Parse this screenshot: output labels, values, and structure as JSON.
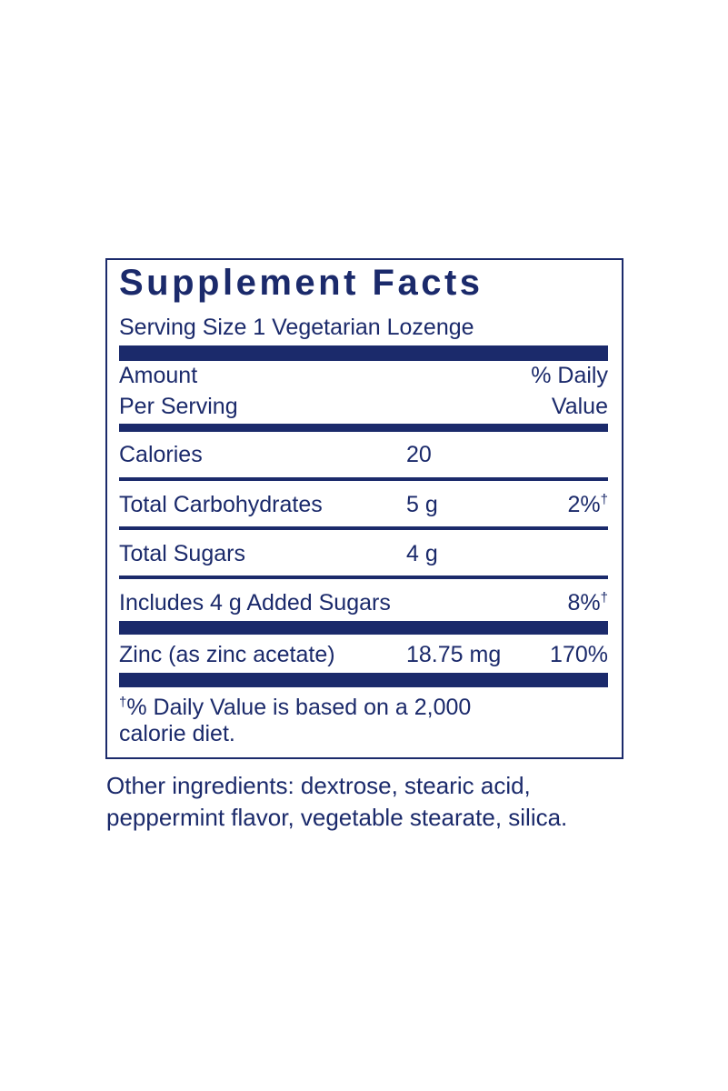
{
  "label": {
    "title": "Supplement Facts",
    "serving_size": "Serving Size 1 Vegetarian Lozenge",
    "header": {
      "amount": [
        "Amount",
        "Per Serving"
      ],
      "daily_value": [
        "% Daily",
        "Value"
      ]
    },
    "rows": [
      {
        "name": "Calories",
        "amount": "20"
      },
      {
        "name": "Total Carbohydrates",
        "amount": "5 g",
        "dv": "2%",
        "dv_mark": "†"
      },
      {
        "name": "Total Sugars",
        "amount": "4 g"
      },
      {
        "name": "Includes 4 g Added Sugars",
        "dv": "8%",
        "dv_mark": "†"
      },
      {
        "name": "Zinc (as zinc acetate)",
        "amount": "18.75 mg",
        "dv": "170%"
      }
    ],
    "footnote": {
      "mark": "†",
      "lines": [
        "% Daily Value is based on a 2,000",
        "calorie diet."
      ]
    }
  },
  "other_ingredients": [
    "Other ingredients: dextrose, stearic acid,",
    "peppermint flavor, vegetable stearate, silica."
  ]
}
